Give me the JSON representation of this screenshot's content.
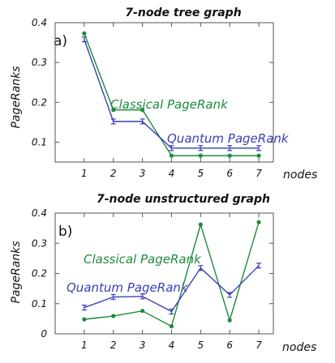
{
  "chart_data": [
    {
      "type": "line",
      "panel_label": "a)",
      "title": "7-node tree graph",
      "xlabel": "nodes",
      "ylabel": "PageRanks",
      "x": [
        1,
        2,
        3,
        4,
        5,
        6,
        7
      ],
      "xlim": [
        0,
        7.5
      ],
      "ylim": [
        0.05,
        0.4
      ],
      "yticks": [
        0.1,
        0.2,
        0.3,
        0.4
      ],
      "ytick_labels": [
        "0.1",
        "0.2",
        "0.3",
        "0.4"
      ],
      "series": [
        {
          "name": "Classical PageRank",
          "color": "#1e8a3c",
          "marker": "dot",
          "values": [
            0.373,
            0.181,
            0.181,
            0.066,
            0.066,
            0.066,
            0.066
          ]
        },
        {
          "name": "Quantum PageRank",
          "color": "#3b3fb5",
          "marker": "errorbar",
          "values": [
            0.358,
            0.152,
            0.152,
            0.085,
            0.085,
            0.085,
            0.085
          ]
        }
      ]
    },
    {
      "type": "line",
      "panel_label": "b)",
      "title": "7-node unstructured graph",
      "xlabel": "nodes",
      "ylabel": "PageRanks",
      "x": [
        1,
        2,
        3,
        4,
        5,
        6,
        7
      ],
      "xlim": [
        0,
        7.5
      ],
      "ylim": [
        0,
        0.4
      ],
      "yticks": [
        0,
        0.1,
        0.2,
        0.3,
        0.4
      ],
      "ytick_labels": [
        "0",
        "0.1",
        "0.2",
        "0.3",
        "0.4"
      ],
      "series": [
        {
          "name": "Classical PageRank",
          "color": "#1e8a3c",
          "marker": "dot",
          "values": [
            0.048,
            0.059,
            0.076,
            0.025,
            0.362,
            0.045,
            0.37
          ]
        },
        {
          "name": "Quantum PageRank",
          "color": "#3b3fb5",
          "marker": "errorbar",
          "values": [
            0.087,
            0.122,
            0.124,
            0.074,
            0.218,
            0.129,
            0.226
          ]
        }
      ]
    }
  ]
}
